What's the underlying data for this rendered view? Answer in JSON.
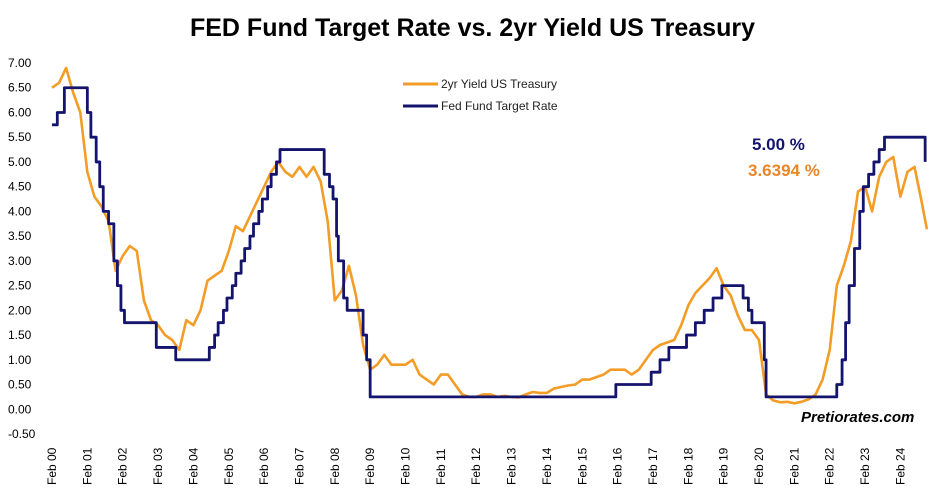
{
  "chart_data": {
    "type": "line",
    "title": "FED Fund Target Rate vs. 2yr Yield US Treasury",
    "xlabel": "",
    "ylabel": "",
    "ylim": [
      -0.5,
      7.0
    ],
    "y_ticks": [
      "7.00",
      "6.50",
      "6.00",
      "5.50",
      "5.00",
      "4.50",
      "4.00",
      "3.50",
      "3.00",
      "2.50",
      "2.00",
      "1.50",
      "1.00",
      "0.50",
      "0.00",
      "-0.50"
    ],
    "x_ticks": [
      "Feb 00",
      "Feb 01",
      "Feb 02",
      "Feb 03",
      "Feb 04",
      "Feb 05",
      "Feb 06",
      "Feb 07",
      "Feb 08",
      "Feb 09",
      "Feb 10",
      "Feb 11",
      "Feb 12",
      "Feb 13",
      "Feb 14",
      "Feb 15",
      "Feb 16",
      "Feb 17",
      "Feb 18",
      "Feb 19",
      "Feb 20",
      "Feb 21",
      "Feb 22",
      "Feb 23",
      "Feb 24"
    ],
    "x_range": [
      2000.0,
      2024.75
    ],
    "legend_position": "top-center",
    "series": [
      {
        "name": "2yr Yield US Treasury",
        "color": "#f39c26",
        "points": [
          [
            2000.0,
            6.5
          ],
          [
            2000.2,
            6.6
          ],
          [
            2000.4,
            6.9
          ],
          [
            2000.6,
            6.4
          ],
          [
            2000.8,
            6.0
          ],
          [
            2001.0,
            4.8
          ],
          [
            2001.2,
            4.3
          ],
          [
            2001.4,
            4.1
          ],
          [
            2001.6,
            3.8
          ],
          [
            2001.8,
            2.8
          ],
          [
            2002.0,
            3.1
          ],
          [
            2002.2,
            3.3
          ],
          [
            2002.4,
            3.2
          ],
          [
            2002.6,
            2.2
          ],
          [
            2002.8,
            1.8
          ],
          [
            2003.0,
            1.7
          ],
          [
            2003.2,
            1.5
          ],
          [
            2003.4,
            1.4
          ],
          [
            2003.6,
            1.2
          ],
          [
            2003.8,
            1.8
          ],
          [
            2004.0,
            1.7
          ],
          [
            2004.2,
            2.0
          ],
          [
            2004.4,
            2.6
          ],
          [
            2004.6,
            2.7
          ],
          [
            2004.8,
            2.8
          ],
          [
            2005.0,
            3.2
          ],
          [
            2005.2,
            3.7
          ],
          [
            2005.4,
            3.6
          ],
          [
            2005.6,
            3.9
          ],
          [
            2005.8,
            4.2
          ],
          [
            2006.0,
            4.5
          ],
          [
            2006.2,
            4.8
          ],
          [
            2006.4,
            5.0
          ],
          [
            2006.6,
            4.8
          ],
          [
            2006.8,
            4.7
          ],
          [
            2007.0,
            4.9
          ],
          [
            2007.2,
            4.7
          ],
          [
            2007.4,
            4.9
          ],
          [
            2007.6,
            4.6
          ],
          [
            2007.8,
            3.8
          ],
          [
            2008.0,
            2.2
          ],
          [
            2008.2,
            2.4
          ],
          [
            2008.4,
            2.9
          ],
          [
            2008.6,
            2.3
          ],
          [
            2008.8,
            1.3
          ],
          [
            2009.0,
            0.8
          ],
          [
            2009.2,
            0.9
          ],
          [
            2009.4,
            1.1
          ],
          [
            2009.6,
            0.9
          ],
          [
            2009.8,
            0.9
          ],
          [
            2010.0,
            0.9
          ],
          [
            2010.2,
            1.0
          ],
          [
            2010.4,
            0.7
          ],
          [
            2010.6,
            0.6
          ],
          [
            2010.8,
            0.5
          ],
          [
            2011.0,
            0.7
          ],
          [
            2011.2,
            0.7
          ],
          [
            2011.4,
            0.5
          ],
          [
            2011.6,
            0.3
          ],
          [
            2011.8,
            0.25
          ],
          [
            2012.0,
            0.25
          ],
          [
            2012.2,
            0.3
          ],
          [
            2012.4,
            0.3
          ],
          [
            2012.6,
            0.25
          ],
          [
            2012.8,
            0.27
          ],
          [
            2013.0,
            0.25
          ],
          [
            2013.2,
            0.24
          ],
          [
            2013.4,
            0.3
          ],
          [
            2013.6,
            0.35
          ],
          [
            2013.8,
            0.33
          ],
          [
            2014.0,
            0.33
          ],
          [
            2014.2,
            0.42
          ],
          [
            2014.4,
            0.45
          ],
          [
            2014.6,
            0.48
          ],
          [
            2014.8,
            0.5
          ],
          [
            2015.0,
            0.6
          ],
          [
            2015.2,
            0.6
          ],
          [
            2015.4,
            0.65
          ],
          [
            2015.6,
            0.7
          ],
          [
            2015.8,
            0.8
          ],
          [
            2016.0,
            0.8
          ],
          [
            2016.2,
            0.8
          ],
          [
            2016.4,
            0.7
          ],
          [
            2016.6,
            0.8
          ],
          [
            2016.8,
            1.0
          ],
          [
            2017.0,
            1.2
          ],
          [
            2017.2,
            1.3
          ],
          [
            2017.4,
            1.35
          ],
          [
            2017.6,
            1.4
          ],
          [
            2017.8,
            1.7
          ],
          [
            2018.0,
            2.1
          ],
          [
            2018.2,
            2.35
          ],
          [
            2018.4,
            2.5
          ],
          [
            2018.6,
            2.65
          ],
          [
            2018.8,
            2.85
          ],
          [
            2019.0,
            2.5
          ],
          [
            2019.2,
            2.3
          ],
          [
            2019.4,
            1.9
          ],
          [
            2019.6,
            1.6
          ],
          [
            2019.8,
            1.6
          ],
          [
            2020.0,
            1.4
          ],
          [
            2020.2,
            0.3
          ],
          [
            2020.4,
            0.18
          ],
          [
            2020.6,
            0.14
          ],
          [
            2020.8,
            0.15
          ],
          [
            2021.0,
            0.12
          ],
          [
            2021.2,
            0.15
          ],
          [
            2021.4,
            0.2
          ],
          [
            2021.6,
            0.3
          ],
          [
            2021.8,
            0.6
          ],
          [
            2022.0,
            1.2
          ],
          [
            2022.2,
            2.5
          ],
          [
            2022.4,
            2.9
          ],
          [
            2022.6,
            3.4
          ],
          [
            2022.8,
            4.4
          ],
          [
            2023.0,
            4.5
          ],
          [
            2023.2,
            4.0
          ],
          [
            2023.4,
            4.7
          ],
          [
            2023.6,
            5.0
          ],
          [
            2023.8,
            5.1
          ],
          [
            2024.0,
            4.3
          ],
          [
            2024.2,
            4.8
          ],
          [
            2024.4,
            4.9
          ],
          [
            2024.6,
            4.2
          ],
          [
            2024.75,
            3.6394
          ]
        ]
      },
      {
        "name": "Fed Fund Target Rate",
        "color": "#14146e",
        "points": [
          [
            2000.0,
            5.75
          ],
          [
            2000.15,
            6.0
          ],
          [
            2000.35,
            6.5
          ],
          [
            2001.0,
            6.0
          ],
          [
            2001.1,
            5.5
          ],
          [
            2001.25,
            5.0
          ],
          [
            2001.35,
            4.5
          ],
          [
            2001.45,
            4.0
          ],
          [
            2001.6,
            3.75
          ],
          [
            2001.75,
            3.0
          ],
          [
            2001.85,
            2.5
          ],
          [
            2001.95,
            2.0
          ],
          [
            2002.05,
            1.75
          ],
          [
            2002.95,
            1.25
          ],
          [
            2003.5,
            1.0
          ],
          [
            2004.45,
            1.25
          ],
          [
            2004.6,
            1.5
          ],
          [
            2004.7,
            1.75
          ],
          [
            2004.85,
            2.0
          ],
          [
            2004.95,
            2.25
          ],
          [
            2005.1,
            2.5
          ],
          [
            2005.2,
            2.75
          ],
          [
            2005.35,
            3.0
          ],
          [
            2005.45,
            3.25
          ],
          [
            2005.6,
            3.5
          ],
          [
            2005.7,
            3.75
          ],
          [
            2005.85,
            4.0
          ],
          [
            2005.95,
            4.25
          ],
          [
            2006.1,
            4.5
          ],
          [
            2006.2,
            4.75
          ],
          [
            2006.35,
            5.0
          ],
          [
            2006.45,
            5.25
          ],
          [
            2007.7,
            4.75
          ],
          [
            2007.85,
            4.5
          ],
          [
            2007.95,
            4.25
          ],
          [
            2008.05,
            3.5
          ],
          [
            2008.1,
            3.0
          ],
          [
            2008.25,
            2.25
          ],
          [
            2008.35,
            2.0
          ],
          [
            2008.8,
            1.5
          ],
          [
            2008.9,
            1.0
          ],
          [
            2009.0,
            0.25
          ],
          [
            2015.95,
            0.5
          ],
          [
            2016.95,
            0.75
          ],
          [
            2017.2,
            1.0
          ],
          [
            2017.45,
            1.25
          ],
          [
            2017.95,
            1.5
          ],
          [
            2018.2,
            1.75
          ],
          [
            2018.45,
            2.0
          ],
          [
            2018.7,
            2.25
          ],
          [
            2018.95,
            2.5
          ],
          [
            2019.55,
            2.25
          ],
          [
            2019.7,
            2.0
          ],
          [
            2019.8,
            1.75
          ],
          [
            2020.15,
            1.0
          ],
          [
            2020.2,
            0.25
          ],
          [
            2022.2,
            0.5
          ],
          [
            2022.35,
            1.0
          ],
          [
            2022.45,
            1.75
          ],
          [
            2022.55,
            2.5
          ],
          [
            2022.7,
            3.25
          ],
          [
            2022.85,
            4.0
          ],
          [
            2022.95,
            4.5
          ],
          [
            2023.1,
            4.75
          ],
          [
            2023.25,
            5.0
          ],
          [
            2023.4,
            5.25
          ],
          [
            2023.55,
            5.5
          ],
          [
            2024.7,
            5.0
          ]
        ]
      }
    ],
    "annotations": {
      "fed_latest": "5.00 %",
      "yield_latest": "3.6394 %"
    }
  },
  "watermark": "Pretiorates.com"
}
